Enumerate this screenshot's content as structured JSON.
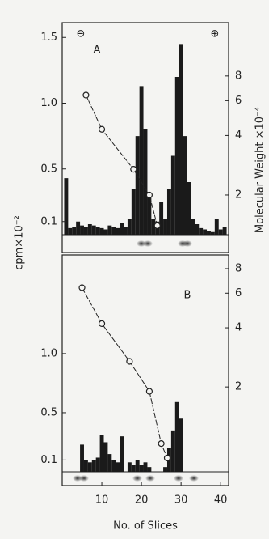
{
  "chart_data": [
    {
      "type": "bar",
      "label": "A",
      "annotations": [
        "⊖",
        "⊕"
      ],
      "ylabel": "cpm×10⁻²",
      "y2label": "Molecular Weight ×10⁻⁴",
      "x": [
        1,
        2,
        3,
        4,
        5,
        6,
        7,
        8,
        9,
        10,
        11,
        12,
        13,
        14,
        15,
        16,
        17,
        18,
        19,
        20,
        21,
        22,
        23,
        24,
        25,
        26,
        27,
        28,
        29,
        30,
        31,
        32,
        33,
        34,
        35,
        36,
        37,
        38,
        39,
        40,
        41
      ],
      "values": [
        0.43,
        0.05,
        0.06,
        0.1,
        0.07,
        0.06,
        0.08,
        0.07,
        0.06,
        0.05,
        0.04,
        0.07,
        0.06,
        0.05,
        0.09,
        0.06,
        0.12,
        0.35,
        0.75,
        1.13,
        0.8,
        0.3,
        0.12,
        0.1,
        0.25,
        0.12,
        0.35,
        0.6,
        1.2,
        1.45,
        0.75,
        0.4,
        0.12,
        0.08,
        0.05,
        0.04,
        0.03,
        0.02,
        0.12,
        0.04,
        0.06
      ],
      "color": "#1a1a1a",
      "xlim": [
        0,
        42
      ],
      "ylim": [
        0,
        1.6
      ],
      "yticks": [
        0.1,
        0.5,
        {
          "value": 1,
          "label": "1.0"
        },
        1.5
      ],
      "y2lim": [
        1.26,
        14.6
      ],
      "y2scale": "log",
      "y2ticks": [
        2,
        4,
        6,
        8
      ],
      "overlay": {
        "type": "line",
        "axis": "y2",
        "x": [
          6,
          10,
          18,
          22,
          24
        ],
        "values": [
          6.4,
          4.3,
          2.7,
          2.0,
          1.4
        ]
      }
    },
    {
      "type": "bar",
      "label": "B",
      "xlabel": "No. of Slices",
      "x": [
        1,
        2,
        3,
        4,
        5,
        6,
        7,
        8,
        9,
        10,
        11,
        12,
        13,
        14,
        15,
        16,
        17,
        18,
        19,
        20,
        21,
        22,
        23,
        24,
        25,
        26,
        27,
        28,
        29,
        30,
        31,
        32,
        33,
        34,
        35,
        36,
        37,
        38,
        39,
        40,
        41
      ],
      "values": [
        0,
        0,
        0,
        0,
        0.23,
        0.1,
        0.08,
        0.1,
        0.12,
        0.31,
        0.25,
        0.15,
        0.1,
        0.08,
        0.3,
        0,
        0.08,
        0.06,
        0.1,
        0.06,
        0.08,
        0.04,
        0,
        0,
        0,
        0.04,
        0.2,
        0.35,
        0.59,
        0.45,
        0,
        0,
        0,
        0,
        0,
        0,
        0,
        0,
        0,
        0,
        0
      ],
      "color": "#1a1a1a",
      "xlim": [
        0,
        42
      ],
      "xticks": [
        10,
        20,
        30,
        40
      ],
      "ylim": [
        0,
        1.8
      ],
      "yticks": [
        0.1,
        0.5,
        {
          "value": 1,
          "label": "1.0"
        }
      ],
      "y2lim": [
        0.74,
        8.96
      ],
      "y2scale": "log",
      "y2ticks": [
        2,
        4,
        6,
        8
      ],
      "overlay": {
        "type": "line",
        "axis": "y2",
        "x": [
          5,
          10,
          17,
          22,
          25,
          26.5
        ],
        "values": [
          6.4,
          4.2,
          2.7,
          1.9,
          1.03,
          0.87
        ]
      }
    }
  ]
}
